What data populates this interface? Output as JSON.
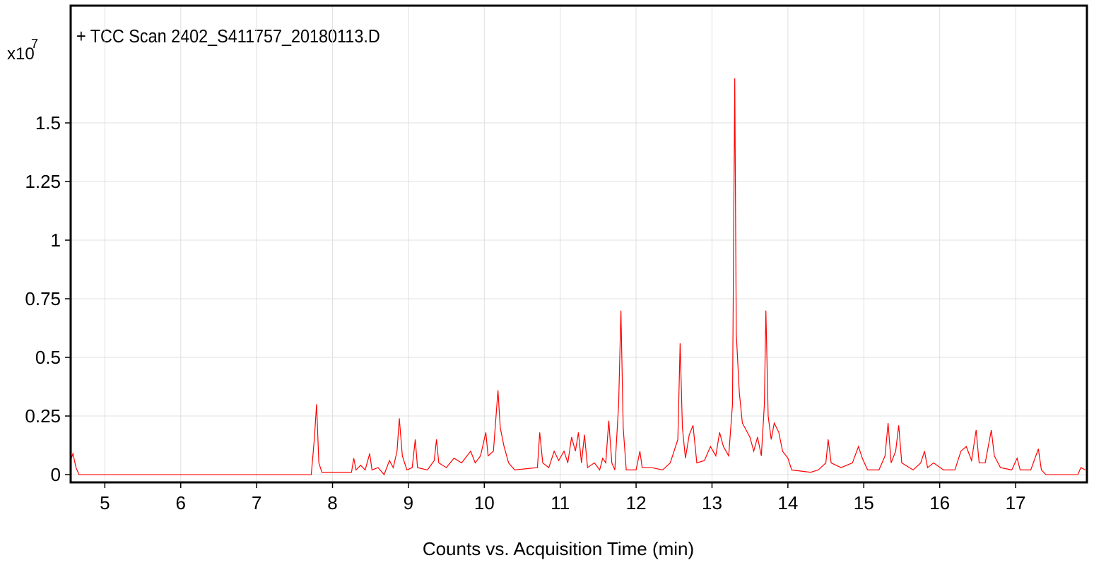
{
  "chart_data": {
    "type": "line",
    "title": "+ TCC Scan 2402_S411757_20180113.D",
    "x_label": "Counts vs. Acquisition Time (min)",
    "y_multiplier": "x10",
    "y_exponent": "7",
    "xlim": [
      4.55,
      17.94
    ],
    "ylim": [
      -0.033,
      2.0
    ],
    "xticks": [
      5,
      6,
      7,
      8,
      9,
      10,
      11,
      12,
      13,
      14,
      15,
      16,
      17
    ],
    "yticks": [
      0,
      0.25,
      0.5,
      0.75,
      1,
      1.25,
      1.5
    ],
    "grid": true,
    "series": [
      {
        "name": "TCC",
        "color": "#ff0000",
        "x": [
          4.56,
          4.58,
          4.62,
          4.66,
          7.72,
          7.76,
          7.79,
          7.82,
          7.86,
          8.25,
          8.28,
          8.31,
          8.37,
          8.43,
          8.49,
          8.52,
          8.6,
          8.68,
          8.75,
          8.8,
          8.85,
          8.88,
          8.92,
          8.98,
          9.05,
          9.09,
          9.12,
          9.25,
          9.34,
          9.37,
          9.4,
          9.5,
          9.6,
          9.7,
          9.82,
          9.88,
          9.95,
          10.02,
          10.05,
          10.12,
          10.18,
          10.21,
          10.26,
          10.32,
          10.4,
          10.7,
          10.73,
          10.77,
          10.85,
          10.92,
          10.98,
          11.05,
          11.1,
          11.15,
          11.2,
          11.24,
          11.28,
          11.32,
          11.36,
          11.45,
          11.52,
          11.56,
          11.6,
          11.64,
          11.68,
          11.72,
          11.77,
          11.8,
          11.83,
          11.87,
          12.0,
          12.05,
          12.08,
          12.2,
          12.35,
          12.45,
          12.55,
          12.58,
          12.61,
          12.65,
          12.7,
          12.75,
          12.8,
          12.9,
          12.98,
          13.05,
          13.1,
          13.15,
          13.22,
          13.27,
          13.3,
          13.32,
          13.36,
          13.4,
          13.5,
          13.55,
          13.6,
          13.65,
          13.69,
          13.71,
          13.74,
          13.78,
          13.82,
          13.88,
          13.93,
          14.0,
          14.05,
          14.3,
          14.4,
          14.5,
          14.53,
          14.57,
          14.7,
          14.85,
          14.93,
          14.98,
          15.05,
          15.2,
          15.28,
          15.32,
          15.36,
          15.42,
          15.46,
          15.5,
          15.65,
          15.75,
          15.8,
          15.84,
          15.92,
          16.05,
          16.2,
          16.28,
          16.35,
          16.42,
          16.48,
          16.52,
          16.6,
          16.68,
          16.72,
          16.8,
          16.95,
          17.02,
          17.06,
          17.2,
          17.3,
          17.34,
          17.4,
          17.82,
          17.86,
          17.92
        ],
        "values": [
          0.07,
          0.09,
          0.03,
          0.0,
          0.0,
          0.15,
          0.3,
          0.05,
          0.01,
          0.01,
          0.07,
          0.02,
          0.04,
          0.02,
          0.09,
          0.02,
          0.03,
          0.0,
          0.06,
          0.03,
          0.1,
          0.24,
          0.08,
          0.02,
          0.03,
          0.15,
          0.03,
          0.02,
          0.06,
          0.15,
          0.05,
          0.03,
          0.07,
          0.05,
          0.1,
          0.05,
          0.08,
          0.18,
          0.08,
          0.1,
          0.36,
          0.2,
          0.12,
          0.05,
          0.02,
          0.03,
          0.18,
          0.05,
          0.03,
          0.1,
          0.06,
          0.1,
          0.05,
          0.16,
          0.1,
          0.18,
          0.05,
          0.17,
          0.03,
          0.05,
          0.02,
          0.07,
          0.05,
          0.23,
          0.05,
          0.02,
          0.3,
          0.7,
          0.2,
          0.02,
          0.02,
          0.1,
          0.03,
          0.03,
          0.02,
          0.05,
          0.15,
          0.56,
          0.2,
          0.07,
          0.17,
          0.21,
          0.05,
          0.06,
          0.12,
          0.08,
          0.18,
          0.12,
          0.08,
          0.3,
          1.69,
          0.6,
          0.35,
          0.22,
          0.16,
          0.1,
          0.16,
          0.08,
          0.3,
          0.7,
          0.25,
          0.15,
          0.22,
          0.18,
          0.1,
          0.07,
          0.02,
          0.01,
          0.02,
          0.05,
          0.15,
          0.05,
          0.03,
          0.05,
          0.12,
          0.07,
          0.02,
          0.02,
          0.08,
          0.22,
          0.05,
          0.1,
          0.21,
          0.05,
          0.02,
          0.05,
          0.1,
          0.03,
          0.05,
          0.02,
          0.02,
          0.1,
          0.12,
          0.06,
          0.19,
          0.05,
          0.05,
          0.19,
          0.08,
          0.03,
          0.02,
          0.07,
          0.02,
          0.02,
          0.11,
          0.02,
          0.0,
          0.0,
          0.03,
          0.02
        ]
      }
    ]
  }
}
